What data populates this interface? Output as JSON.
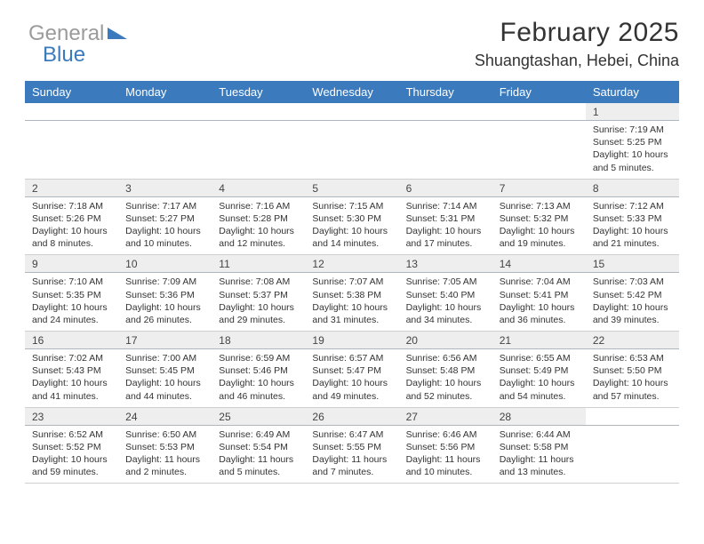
{
  "logo": {
    "text1": "General",
    "text2": "Blue"
  },
  "title": "February 2025",
  "location": "Shuangtashan, Hebei, China",
  "colors": {
    "header_bg": "#3a7abd",
    "header_text": "#ffffff",
    "daynum_bg": "#eeeeee",
    "border": "#cfcfcf",
    "body_text": "#333333",
    "logo_gray": "#9b9b9b",
    "logo_blue": "#3a7abd"
  },
  "typography": {
    "title_fontsize": 30,
    "location_fontsize": 18,
    "header_fontsize": 13,
    "daynum_fontsize": 12,
    "cell_fontsize": 10.5
  },
  "weekdays": [
    "Sunday",
    "Monday",
    "Tuesday",
    "Wednesday",
    "Thursday",
    "Friday",
    "Saturday"
  ],
  "weeks": [
    [
      null,
      null,
      null,
      null,
      null,
      null,
      {
        "n": "1",
        "sr": "Sunrise: 7:19 AM",
        "ss": "Sunset: 5:25 PM",
        "dl": "Daylight: 10 hours and 5 minutes."
      }
    ],
    [
      {
        "n": "2",
        "sr": "Sunrise: 7:18 AM",
        "ss": "Sunset: 5:26 PM",
        "dl": "Daylight: 10 hours and 8 minutes."
      },
      {
        "n": "3",
        "sr": "Sunrise: 7:17 AM",
        "ss": "Sunset: 5:27 PM",
        "dl": "Daylight: 10 hours and 10 minutes."
      },
      {
        "n": "4",
        "sr": "Sunrise: 7:16 AM",
        "ss": "Sunset: 5:28 PM",
        "dl": "Daylight: 10 hours and 12 minutes."
      },
      {
        "n": "5",
        "sr": "Sunrise: 7:15 AM",
        "ss": "Sunset: 5:30 PM",
        "dl": "Daylight: 10 hours and 14 minutes."
      },
      {
        "n": "6",
        "sr": "Sunrise: 7:14 AM",
        "ss": "Sunset: 5:31 PM",
        "dl": "Daylight: 10 hours and 17 minutes."
      },
      {
        "n": "7",
        "sr": "Sunrise: 7:13 AM",
        "ss": "Sunset: 5:32 PM",
        "dl": "Daylight: 10 hours and 19 minutes."
      },
      {
        "n": "8",
        "sr": "Sunrise: 7:12 AM",
        "ss": "Sunset: 5:33 PM",
        "dl": "Daylight: 10 hours and 21 minutes."
      }
    ],
    [
      {
        "n": "9",
        "sr": "Sunrise: 7:10 AM",
        "ss": "Sunset: 5:35 PM",
        "dl": "Daylight: 10 hours and 24 minutes."
      },
      {
        "n": "10",
        "sr": "Sunrise: 7:09 AM",
        "ss": "Sunset: 5:36 PM",
        "dl": "Daylight: 10 hours and 26 minutes."
      },
      {
        "n": "11",
        "sr": "Sunrise: 7:08 AM",
        "ss": "Sunset: 5:37 PM",
        "dl": "Daylight: 10 hours and 29 minutes."
      },
      {
        "n": "12",
        "sr": "Sunrise: 7:07 AM",
        "ss": "Sunset: 5:38 PM",
        "dl": "Daylight: 10 hours and 31 minutes."
      },
      {
        "n": "13",
        "sr": "Sunrise: 7:05 AM",
        "ss": "Sunset: 5:40 PM",
        "dl": "Daylight: 10 hours and 34 minutes."
      },
      {
        "n": "14",
        "sr": "Sunrise: 7:04 AM",
        "ss": "Sunset: 5:41 PM",
        "dl": "Daylight: 10 hours and 36 minutes."
      },
      {
        "n": "15",
        "sr": "Sunrise: 7:03 AM",
        "ss": "Sunset: 5:42 PM",
        "dl": "Daylight: 10 hours and 39 minutes."
      }
    ],
    [
      {
        "n": "16",
        "sr": "Sunrise: 7:02 AM",
        "ss": "Sunset: 5:43 PM",
        "dl": "Daylight: 10 hours and 41 minutes."
      },
      {
        "n": "17",
        "sr": "Sunrise: 7:00 AM",
        "ss": "Sunset: 5:45 PM",
        "dl": "Daylight: 10 hours and 44 minutes."
      },
      {
        "n": "18",
        "sr": "Sunrise: 6:59 AM",
        "ss": "Sunset: 5:46 PM",
        "dl": "Daylight: 10 hours and 46 minutes."
      },
      {
        "n": "19",
        "sr": "Sunrise: 6:57 AM",
        "ss": "Sunset: 5:47 PM",
        "dl": "Daylight: 10 hours and 49 minutes."
      },
      {
        "n": "20",
        "sr": "Sunrise: 6:56 AM",
        "ss": "Sunset: 5:48 PM",
        "dl": "Daylight: 10 hours and 52 minutes."
      },
      {
        "n": "21",
        "sr": "Sunrise: 6:55 AM",
        "ss": "Sunset: 5:49 PM",
        "dl": "Daylight: 10 hours and 54 minutes."
      },
      {
        "n": "22",
        "sr": "Sunrise: 6:53 AM",
        "ss": "Sunset: 5:50 PM",
        "dl": "Daylight: 10 hours and 57 minutes."
      }
    ],
    [
      {
        "n": "23",
        "sr": "Sunrise: 6:52 AM",
        "ss": "Sunset: 5:52 PM",
        "dl": "Daylight: 10 hours and 59 minutes."
      },
      {
        "n": "24",
        "sr": "Sunrise: 6:50 AM",
        "ss": "Sunset: 5:53 PM",
        "dl": "Daylight: 11 hours and 2 minutes."
      },
      {
        "n": "25",
        "sr": "Sunrise: 6:49 AM",
        "ss": "Sunset: 5:54 PM",
        "dl": "Daylight: 11 hours and 5 minutes."
      },
      {
        "n": "26",
        "sr": "Sunrise: 6:47 AM",
        "ss": "Sunset: 5:55 PM",
        "dl": "Daylight: 11 hours and 7 minutes."
      },
      {
        "n": "27",
        "sr": "Sunrise: 6:46 AM",
        "ss": "Sunset: 5:56 PM",
        "dl": "Daylight: 11 hours and 10 minutes."
      },
      {
        "n": "28",
        "sr": "Sunrise: 6:44 AM",
        "ss": "Sunset: 5:58 PM",
        "dl": "Daylight: 11 hours and 13 minutes."
      },
      null
    ]
  ]
}
